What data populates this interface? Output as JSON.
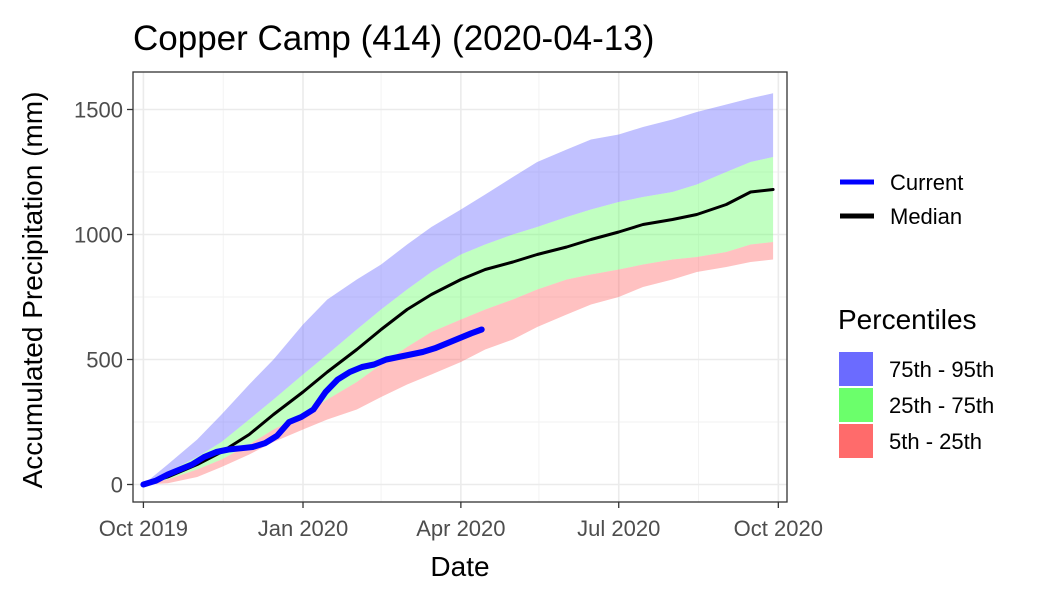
{
  "chart_data": {
    "type": "area",
    "title": "Copper Camp (414) (2020-04-13)",
    "xlabel": "Date",
    "ylabel": "Accumulated Precipitation (mm)",
    "xlim": [
      "2019-09-25",
      "2020-10-06"
    ],
    "ylim": [
      -70,
      1650
    ],
    "x_ticks": [
      {
        "date": "2019-10-01",
        "label": "Oct 2019"
      },
      {
        "date": "2020-01-01",
        "label": "Jan 2020"
      },
      {
        "date": "2020-04-01",
        "label": "Apr 2020"
      },
      {
        "date": "2020-07-01",
        "label": "Jul 2020"
      },
      {
        "date": "2020-10-01",
        "label": "Oct 2020"
      }
    ],
    "y_ticks": [
      {
        "value": 0,
        "label": "0"
      },
      {
        "value": 500,
        "label": "500"
      },
      {
        "value": 1000,
        "label": "1000"
      },
      {
        "value": 1500,
        "label": "1500"
      }
    ],
    "grid": true,
    "legend_position": "right",
    "series": [
      {
        "name": "Current",
        "type": "line",
        "color": "#0000ff",
        "x": [
          "2019-10-01",
          "2019-10-08",
          "2019-10-15",
          "2019-10-22",
          "2019-10-29",
          "2019-11-05",
          "2019-11-12",
          "2019-11-19",
          "2019-11-26",
          "2019-12-03",
          "2019-12-10",
          "2019-12-17",
          "2019-12-24",
          "2019-12-31",
          "2020-01-07",
          "2020-01-14",
          "2020-01-21",
          "2020-01-28",
          "2020-02-04",
          "2020-02-11",
          "2020-02-18",
          "2020-02-25",
          "2020-03-03",
          "2020-03-10",
          "2020-03-17",
          "2020-03-24",
          "2020-03-31",
          "2020-04-07",
          "2020-04-13"
        ],
        "y": [
          0,
          15,
          40,
          60,
          80,
          110,
          130,
          140,
          145,
          150,
          165,
          195,
          250,
          270,
          300,
          370,
          420,
          450,
          470,
          480,
          500,
          510,
          520,
          530,
          545,
          565,
          585,
          605,
          620
        ]
      },
      {
        "name": "Median",
        "type": "line",
        "color": "#000000",
        "x": [
          "2019-10-01",
          "2019-10-15",
          "2019-11-01",
          "2019-11-15",
          "2019-12-01",
          "2019-12-15",
          "2020-01-01",
          "2020-01-15",
          "2020-02-01",
          "2020-02-15",
          "2020-03-01",
          "2020-03-15",
          "2020-04-01",
          "2020-04-15",
          "2020-05-01",
          "2020-05-15",
          "2020-06-01",
          "2020-06-15",
          "2020-07-01",
          "2020-07-15",
          "2020-08-01",
          "2020-08-15",
          "2020-09-01",
          "2020-09-15",
          "2020-09-28"
        ],
        "y": [
          0,
          30,
          80,
          130,
          200,
          280,
          370,
          450,
          540,
          620,
          700,
          760,
          820,
          860,
          890,
          920,
          950,
          980,
          1010,
          1040,
          1060,
          1080,
          1120,
          1170,
          1180
        ]
      }
    ],
    "bands": [
      {
        "name": "75th - 95th",
        "color": "#6b6bff",
        "x": [
          "2019-10-01",
          "2019-10-15",
          "2019-11-01",
          "2019-11-15",
          "2019-12-01",
          "2019-12-15",
          "2020-01-01",
          "2020-01-15",
          "2020-02-01",
          "2020-02-15",
          "2020-03-01",
          "2020-03-15",
          "2020-04-01",
          "2020-04-15",
          "2020-05-01",
          "2020-05-15",
          "2020-06-01",
          "2020-06-15",
          "2020-07-01",
          "2020-07-15",
          "2020-08-01",
          "2020-08-15",
          "2020-09-01",
          "2020-09-15",
          "2020-09-28"
        ],
        "lower": [
          0,
          50,
          110,
          170,
          260,
          340,
          440,
          520,
          620,
          700,
          780,
          850,
          920,
          960,
          1000,
          1030,
          1070,
          1100,
          1130,
          1150,
          1170,
          1200,
          1250,
          1290,
          1310
        ],
        "upper": [
          0,
          80,
          180,
          280,
          400,
          500,
          640,
          740,
          820,
          880,
          960,
          1030,
          1100,
          1160,
          1230,
          1290,
          1340,
          1380,
          1400,
          1430,
          1460,
          1490,
          1520,
          1545,
          1565
        ]
      },
      {
        "name": "25th - 75th",
        "color": "#6bff6b",
        "x": [
          "2019-10-01",
          "2019-10-15",
          "2019-11-01",
          "2019-11-15",
          "2019-12-01",
          "2019-12-15",
          "2020-01-01",
          "2020-01-15",
          "2020-02-01",
          "2020-02-15",
          "2020-03-01",
          "2020-03-15",
          "2020-04-01",
          "2020-04-15",
          "2020-05-01",
          "2020-05-15",
          "2020-06-01",
          "2020-06-15",
          "2020-07-01",
          "2020-07-15",
          "2020-08-01",
          "2020-08-15",
          "2020-09-01",
          "2020-09-15",
          "2020-09-28"
        ],
        "lower": [
          0,
          20,
          60,
          100,
          160,
          220,
          280,
          340,
          410,
          480,
          550,
          610,
          660,
          700,
          740,
          780,
          820,
          840,
          860,
          880,
          900,
          910,
          930,
          960,
          970
        ],
        "upper": [
          0,
          50,
          110,
          170,
          260,
          340,
          440,
          520,
          620,
          700,
          780,
          850,
          920,
          960,
          1000,
          1030,
          1070,
          1100,
          1130,
          1150,
          1170,
          1200,
          1250,
          1290,
          1310
        ]
      },
      {
        "name": "5th - 25th",
        "color": "#ff6b6b",
        "x": [
          "2019-10-01",
          "2019-10-15",
          "2019-11-01",
          "2019-11-15",
          "2019-12-01",
          "2019-12-15",
          "2020-01-01",
          "2020-01-15",
          "2020-02-01",
          "2020-02-15",
          "2020-03-01",
          "2020-03-15",
          "2020-04-01",
          "2020-04-15",
          "2020-05-01",
          "2020-05-15",
          "2020-06-01",
          "2020-06-15",
          "2020-07-01",
          "2020-07-15",
          "2020-08-01",
          "2020-08-15",
          "2020-09-01",
          "2020-09-15",
          "2020-09-28"
        ],
        "lower": [
          0,
          5,
          30,
          70,
          120,
          170,
          220,
          260,
          300,
          350,
          400,
          440,
          490,
          540,
          580,
          630,
          680,
          720,
          750,
          790,
          820,
          850,
          870,
          890,
          900
        ],
        "upper": [
          0,
          20,
          60,
          100,
          160,
          220,
          280,
          340,
          410,
          480,
          550,
          610,
          660,
          700,
          740,
          780,
          820,
          840,
          860,
          880,
          900,
          910,
          930,
          960,
          970
        ]
      }
    ],
    "legend": {
      "lines": [
        {
          "label": "Current",
          "color": "#0000ff"
        },
        {
          "label": "Median",
          "color": "#000000"
        }
      ],
      "fill_title": "Percentiles",
      "fills": [
        {
          "label": "75th - 95th",
          "color": "#6b6bff"
        },
        {
          "label": "25th - 75th",
          "color": "#6bff6b"
        },
        {
          "label": "5th - 25th",
          "color": "#ff6b6b"
        }
      ]
    }
  }
}
